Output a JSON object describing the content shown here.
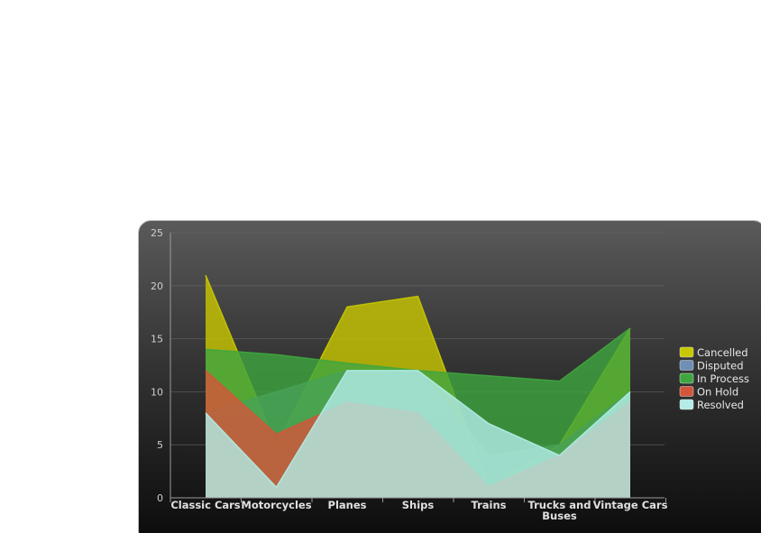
{
  "chart_data": {
    "type": "area",
    "categories": [
      [
        "Classic Cars"
      ],
      [
        "Motorcycles"
      ],
      [
        "Planes"
      ],
      [
        "Ships"
      ],
      [
        "Trains"
      ],
      [
        "Trucks and",
        "Buses"
      ],
      [
        "Vintage Cars"
      ]
    ],
    "ylim": [
      0,
      25
    ],
    "yticks": [
      0,
      5,
      10,
      15,
      20,
      25
    ],
    "grid": true,
    "legend_position": "right",
    "series": [
      {
        "name": "Cancelled",
        "color": "#c9c800",
        "values": [
          21,
          5,
          18,
          19,
          1,
          5,
          16
        ]
      },
      {
        "name": "Disputed",
        "color": "#6f8fb5",
        "values": [
          8,
          10,
          12,
          12,
          4,
          5,
          10
        ]
      },
      {
        "name": "In Process",
        "color": "#3fa63f",
        "values": [
          14,
          13.5,
          12.7,
          12,
          11.5,
          11,
          16
        ]
      },
      {
        "name": "On Hold",
        "color": "#d4553a",
        "values": [
          12,
          6,
          9,
          8,
          1,
          4,
          9
        ]
      },
      {
        "name": "Resolved",
        "color": "#b3ece8",
        "values": [
          8,
          1,
          12,
          12,
          7,
          4,
          10
        ]
      }
    ]
  }
}
